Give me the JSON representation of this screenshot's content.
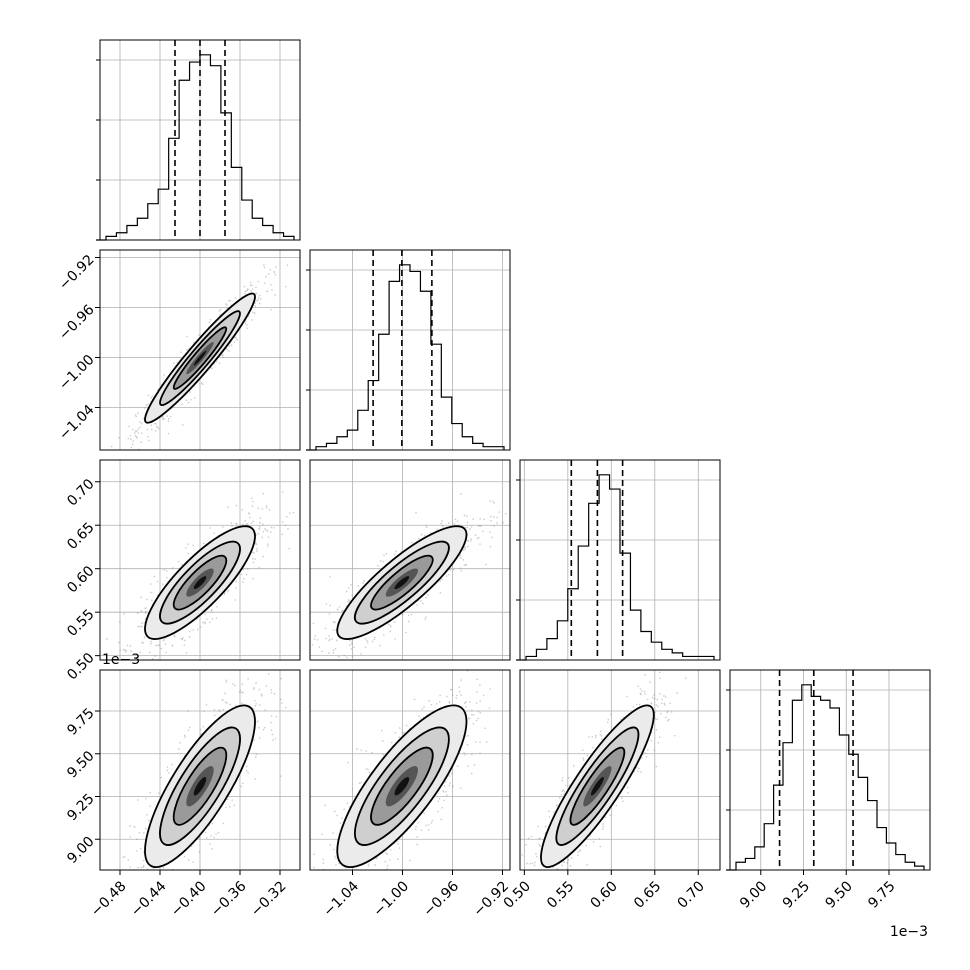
{
  "chart_data": {
    "type": "corner",
    "parameters": [
      {
        "range": [
          -0.5,
          -0.3
        ],
        "quantiles": [
          -0.425,
          -0.4,
          -0.375
        ],
        "ticks": [
          "−0.48",
          "−0.44",
          "−0.40",
          "−0.36",
          "−0.32"
        ],
        "tick_values": [
          -0.48,
          -0.44,
          -0.4,
          -0.36,
          -0.32
        ]
      },
      {
        "range": [
          -1.074,
          -0.914
        ],
        "quantiles": [
          -1.0235,
          -1.0005,
          -0.9765
        ],
        "ticks": [
          "−1.04",
          "−1.00",
          "−0.96",
          "−0.92"
        ],
        "tick_values": [
          -1.04,
          -1.0,
          -0.96,
          -0.92
        ],
        "y_ticks": [
          "−1.04",
          "−1.00",
          "−0.96",
          "−0.92"
        ]
      },
      {
        "range": [
          0.495,
          0.725
        ],
        "quantiles": [
          0.554,
          0.584,
          0.613
        ],
        "ticks": [
          "0.50",
          "0.55",
          "0.60",
          "0.65",
          "0.70"
        ],
        "tick_values": [
          0.5,
          0.55,
          0.6,
          0.65,
          0.7
        ],
        "y_ticks": [
          "0.50",
          "0.55",
          "0.60",
          "0.65",
          "0.70"
        ]
      },
      {
        "range": [
          8.82,
          9.99
        ],
        "quantiles": [
          9.11,
          9.31,
          9.54
        ],
        "ticks": [
          "9.00",
          "9.25",
          "9.50",
          "9.75"
        ],
        "tick_values": [
          9.0,
          9.25,
          9.5,
          9.75
        ],
        "y_ticks": [
          "9.00",
          "9.25",
          "9.50",
          "9.75"
        ],
        "offset": "1e−3"
      }
    ],
    "hist_counts": [
      [
        1,
        2,
        4,
        6,
        10,
        14,
        28,
        44,
        49,
        51,
        48,
        35,
        20,
        11,
        6,
        4,
        2,
        1
      ],
      [
        1,
        2,
        4,
        6,
        12,
        21,
        35,
        51,
        56,
        54,
        48,
        32,
        16,
        8,
        4,
        2,
        1,
        1
      ],
      [
        1,
        3,
        6,
        11,
        20,
        32,
        44,
        52,
        48,
        30,
        14,
        8,
        5,
        3,
        2,
        1,
        1,
        1
      ],
      [
        2,
        3,
        6,
        12,
        22,
        33,
        44,
        48,
        45,
        44,
        42,
        35,
        30,
        24,
        18,
        11,
        7,
        4,
        2,
        1
      ]
    ],
    "correlations": {
      "0-1": 0.95,
      "0-2": 0.82,
      "0-3": 0.8,
      "1-2": 0.85,
      "1-3": 0.8,
      "2-3": 0.88
    },
    "contour_levels": 3,
    "grid": true
  }
}
